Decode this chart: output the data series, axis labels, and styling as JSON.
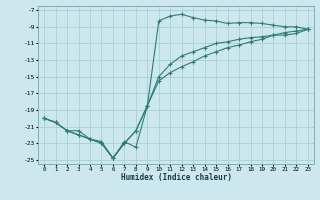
{
  "xlabel": "Humidex (Indice chaleur)",
  "background_color": "#cce8ee",
  "grid_color": "#aacdd4",
  "line_color": "#2d7d74",
  "xlim": [
    -0.5,
    23.5
  ],
  "ylim": [
    -25.5,
    -6.5
  ],
  "xticks": [
    0,
    1,
    2,
    3,
    4,
    5,
    6,
    7,
    8,
    9,
    10,
    11,
    12,
    13,
    14,
    15,
    16,
    17,
    18,
    19,
    20,
    21,
    22,
    23
  ],
  "yticks": [
    -25,
    -23,
    -21,
    -19,
    -17,
    -15,
    -13,
    -11,
    -9,
    -7
  ],
  "line1_x": [
    0,
    1,
    2,
    3,
    4,
    5,
    6,
    7,
    8,
    9,
    10,
    11,
    12,
    13,
    14,
    15,
    16,
    17,
    18,
    19,
    20,
    21,
    22,
    23
  ],
  "line1_y": [
    -20.0,
    -20.5,
    -21.5,
    -21.5,
    -22.5,
    -22.8,
    -24.8,
    -22.8,
    -23.5,
    -18.5,
    -8.3,
    -7.7,
    -7.5,
    -7.9,
    -8.2,
    -8.3,
    -8.6,
    -8.5,
    -8.5,
    -8.6,
    -8.8,
    -9.0,
    -9.0,
    -9.3
  ],
  "line2_x": [
    0,
    1,
    2,
    3,
    4,
    5,
    6,
    7,
    8,
    9,
    10,
    11,
    12,
    13,
    14,
    15,
    16,
    17,
    18,
    19,
    20,
    21,
    22,
    23
  ],
  "line2_y": [
    -20.0,
    -20.5,
    -21.5,
    -22.0,
    -22.5,
    -23.0,
    -24.8,
    -23.0,
    -21.5,
    -18.5,
    -15.0,
    -13.5,
    -12.5,
    -12.0,
    -11.5,
    -11.0,
    -10.8,
    -10.5,
    -10.3,
    -10.2,
    -10.0,
    -10.0,
    -9.8,
    -9.3
  ],
  "line3_x": [
    0,
    1,
    2,
    3,
    4,
    5,
    6,
    7,
    8,
    9,
    10,
    11,
    12,
    13,
    14,
    15,
    16,
    17,
    18,
    19,
    20,
    21,
    22,
    23
  ],
  "line3_y": [
    -20.0,
    -20.5,
    -21.5,
    -22.0,
    -22.5,
    -23.0,
    -24.8,
    -23.0,
    -21.5,
    -18.5,
    -15.5,
    -14.5,
    -13.8,
    -13.2,
    -12.5,
    -12.0,
    -11.5,
    -11.2,
    -10.8,
    -10.5,
    -10.0,
    -9.7,
    -9.5,
    -9.3
  ]
}
